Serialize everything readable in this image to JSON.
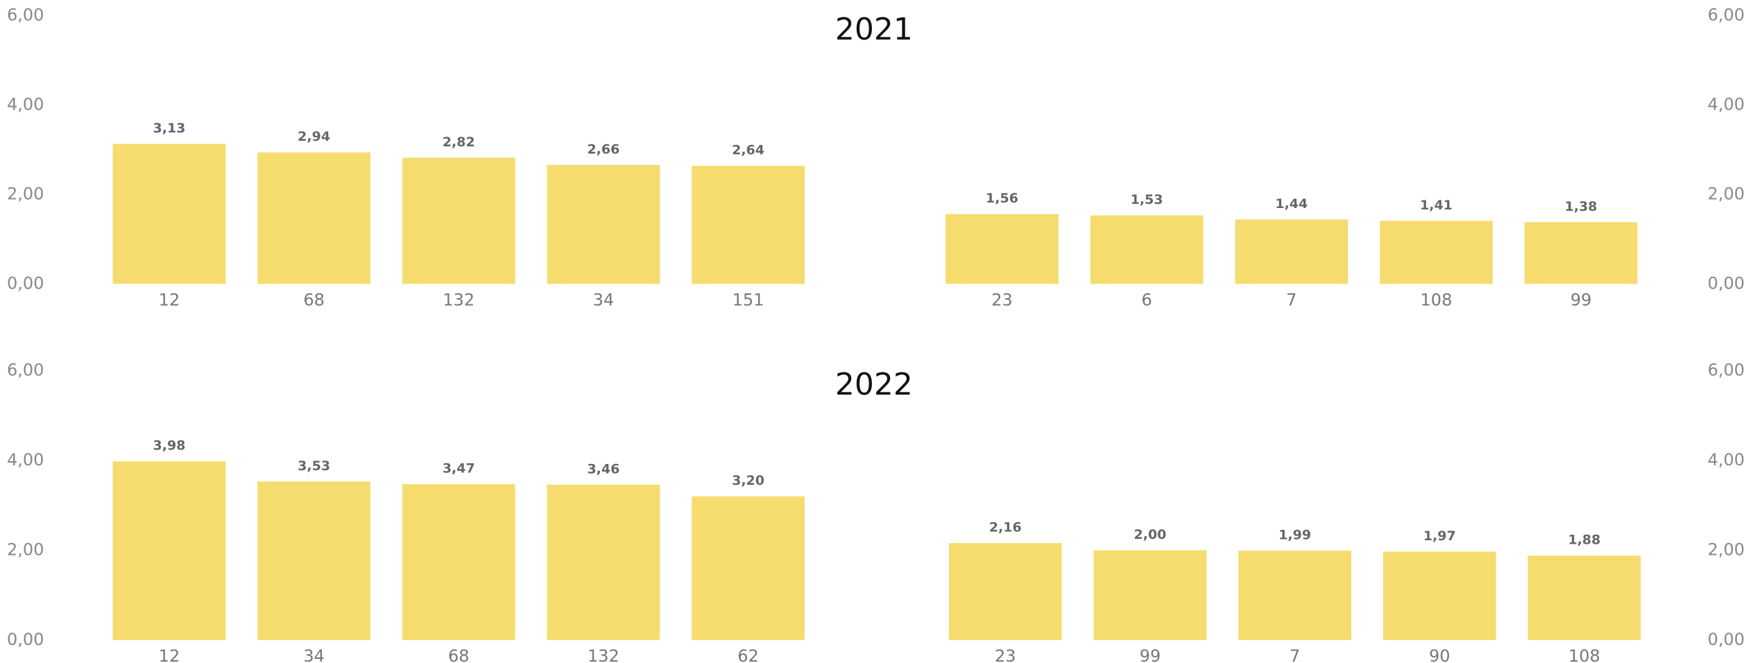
{
  "chart_data": [
    {
      "type": "bar",
      "title": "2021",
      "categories": [
        "12",
        "68",
        "132",
        "34",
        "151"
      ],
      "values": [
        3.13,
        2.94,
        2.82,
        2.66,
        2.64
      ],
      "value_labels": [
        "3,13",
        "2,94",
        "2,82",
        "2,66",
        "2,64"
      ],
      "color": "#f6dc6e",
      "ylim": [
        0,
        6
      ],
      "yticks": [
        {
          "value": 0,
          "label": "0,00"
        },
        {
          "value": 2,
          "label": "2,00"
        },
        {
          "value": 4,
          "label": "4,00"
        },
        {
          "value": 6,
          "label": "6,00"
        }
      ]
    },
    {
      "type": "bar",
      "categories": [
        "23",
        "6",
        "7",
        "108",
        "99"
      ],
      "values": [
        1.56,
        1.53,
        1.44,
        1.41,
        1.38
      ],
      "value_labels": [
        "1,56",
        "1,53",
        "1,44",
        "1,41",
        "1,38"
      ],
      "color": "#f6dc6e",
      "ylim": [
        0,
        6
      ],
      "yticks": [
        {
          "value": 0,
          "label": "0,00"
        },
        {
          "value": 2,
          "label": "2,00"
        },
        {
          "value": 4,
          "label": "4,00"
        },
        {
          "value": 6,
          "label": "6,00"
        }
      ]
    },
    {
      "type": "bar",
      "title": "2022",
      "categories": [
        "12",
        "34",
        "68",
        "132",
        "62"
      ],
      "values": [
        3.98,
        3.53,
        3.47,
        3.46,
        3.2
      ],
      "value_labels": [
        "3,98",
        "3,53",
        "3,47",
        "3,46",
        "3,20"
      ],
      "color": "#f6dc6e",
      "ylim": [
        0,
        6
      ],
      "yticks": [
        {
          "value": 0,
          "label": "0,00"
        },
        {
          "value": 2,
          "label": "2,00"
        },
        {
          "value": 4,
          "label": "4,00"
        },
        {
          "value": 6,
          "label": "6,00"
        }
      ]
    },
    {
      "type": "bar",
      "categories": [
        "23",
        "99",
        "7",
        "90",
        "108"
      ],
      "values": [
        2.16,
        2.0,
        1.99,
        1.97,
        1.88
      ],
      "value_labels": [
        "2,16",
        "2,00",
        "1,99",
        "1,97",
        "1,88"
      ],
      "color": "#f6dc6e",
      "ylim": [
        0,
        6
      ],
      "yticks": [
        {
          "value": 0,
          "label": "0,00"
        },
        {
          "value": 2,
          "label": "2,00"
        },
        {
          "value": 4,
          "label": "4,00"
        },
        {
          "value": 6,
          "label": "6,00"
        }
      ]
    }
  ]
}
